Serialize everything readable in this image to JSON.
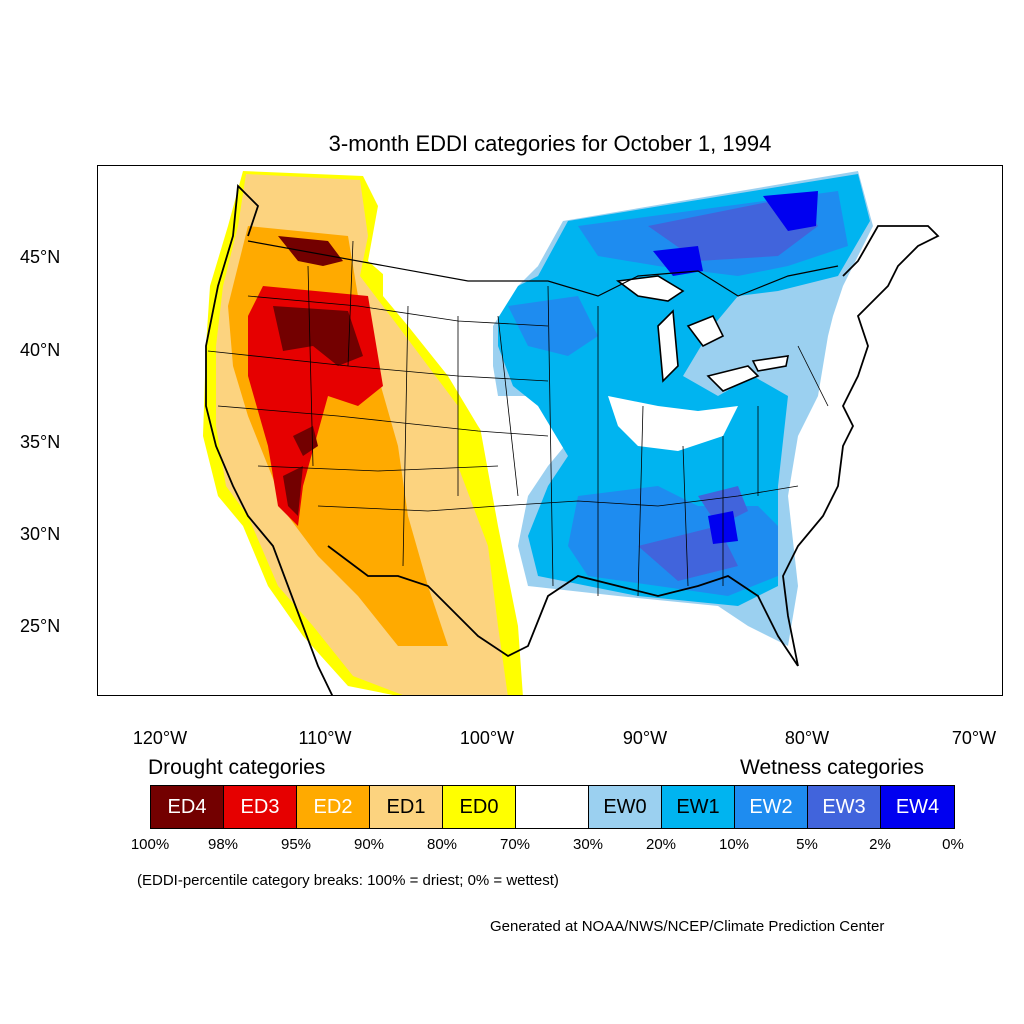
{
  "title": "3-month EDDI categories for October 1, 1994",
  "lat_labels": [
    "45°N",
    "40°N",
    "35°N",
    "30°N",
    "25°N"
  ],
  "lon_labels": [
    "120°W",
    "110°W",
    "100°W",
    "90°W",
    "80°W",
    "70°W"
  ],
  "legend": {
    "drought_heading": "Drought categories",
    "wetness_heading": "Wetness categories",
    "categories": [
      {
        "label": "ED4",
        "color": "#730000",
        "text_color": "#ffffff"
      },
      {
        "label": "ED3",
        "color": "#e60000",
        "text_color": "#ffffff"
      },
      {
        "label": "ED2",
        "color": "#ffaa00",
        "text_color": "#ffffff"
      },
      {
        "label": "ED1",
        "color": "#fcd37f",
        "text_color": "#000000"
      },
      {
        "label": "ED0",
        "color": "#ffff00",
        "text_color": "#000000"
      },
      {
        "label": "",
        "color": "#ffffff",
        "text_color": "#000000"
      },
      {
        "label": "EW0",
        "color": "#9bd0f0",
        "text_color": "#000000"
      },
      {
        "label": "EW1",
        "color": "#00b4f0",
        "text_color": "#000000"
      },
      {
        "label": "EW2",
        "color": "#1e8cf0",
        "text_color": "#ffffff"
      },
      {
        "label": "EW3",
        "color": "#4164dc",
        "text_color": "#ffffff"
      },
      {
        "label": "EW4",
        "color": "#0000f0",
        "text_color": "#ffffff"
      }
    ],
    "breaks": [
      "100%",
      "98%",
      "95%",
      "90%",
      "80%",
      "70%",
      "30%",
      "20%",
      "10%",
      "5%",
      "2%",
      "0%"
    ]
  },
  "note": "(EDDI-percentile category breaks: 100% = driest; 0% = wettest)",
  "credit": "Generated at NOAA/NWS/NCEP/Climate Prediction Center"
}
